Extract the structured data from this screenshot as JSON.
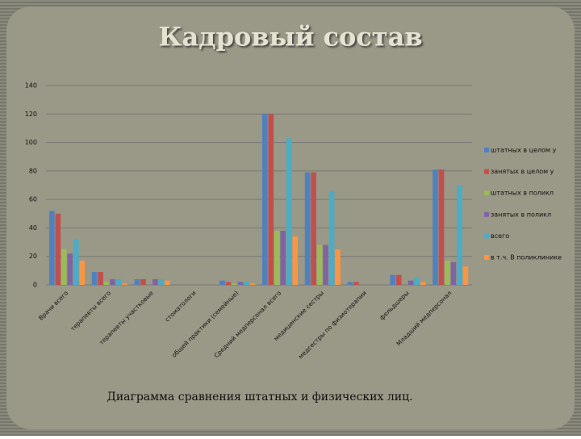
{
  "chart_data": {
    "type": "bar",
    "title": "Кадровый состав",
    "caption": "Диаграмма сравнения штатных и физических лиц.",
    "categories": [
      "Врачи всего",
      "терапевты всего",
      "терапевты участковые",
      "стоматологи",
      "общей практики (семейные)",
      "Средний медперсонал всего",
      "медицинские сестры",
      "медсестры по физиотерапии",
      "фельдшеры",
      "Младший медперсонал"
    ],
    "series": [
      {
        "name": "штатных в целом у",
        "color": "#4f81bd",
        "values": [
          52,
          9,
          4,
          0,
          3,
          120,
          79,
          2,
          7,
          81
        ]
      },
      {
        "name": "занятых в целом у",
        "color": "#c0504d",
        "values": [
          50,
          9,
          4,
          0,
          2,
          120,
          79,
          2,
          7,
          81
        ]
      },
      {
        "name": "штатных в поликл",
        "color": "#9bbb59",
        "values": [
          25,
          2,
          0,
          0,
          1,
          38,
          28,
          0,
          0,
          17
        ]
      },
      {
        "name": "занятых в поликл",
        "color": "#8064a2",
        "values": [
          22,
          4,
          4,
          0,
          2,
          38,
          28,
          0,
          3,
          16
        ]
      },
      {
        "name": "всего",
        "color": "#4bacc6",
        "values": [
          32,
          4,
          4,
          0,
          2,
          103,
          66,
          0,
          5,
          70
        ]
      },
      {
        "name": "в т.ч. В поликлинике",
        "color": "#f79646",
        "values": [
          17,
          1,
          3,
          0,
          1,
          34,
          25,
          0,
          2,
          13
        ]
      }
    ],
    "ylim": [
      0,
      140
    ],
    "yticks": [
      0,
      20,
      40,
      60,
      80,
      100,
      120,
      140
    ],
    "grid": true,
    "legend": "right"
  }
}
